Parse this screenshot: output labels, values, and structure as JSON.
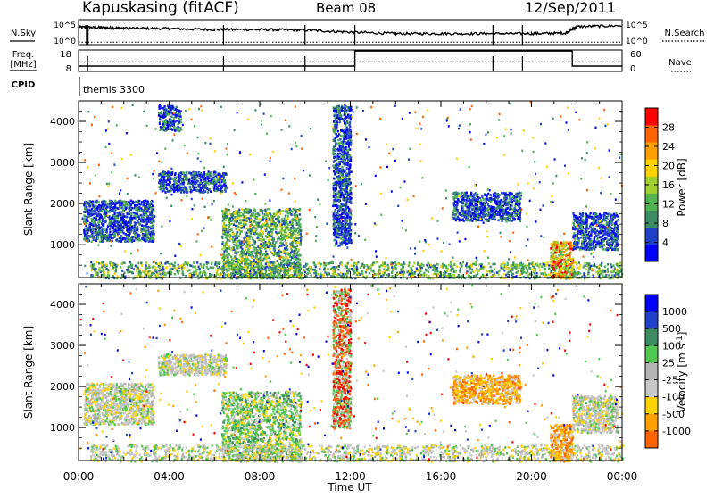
{
  "header": {
    "station": "Kapuskasing (fitACF)",
    "beam": "Beam 08",
    "date": "12/Sep/2011"
  },
  "panel_labels": {
    "nsky": "N.Sky",
    "nsearch": "N.Search",
    "freq": "Freq.",
    "freq_unit": "[MHz]",
    "nave": "Nave",
    "cpid": "CPID",
    "cpid_value": "themis 3300",
    "nsky_ticks": [
      "10^5",
      "10^0"
    ],
    "nsearch_ticks": [
      "10^5",
      "10^0"
    ],
    "freq_ticks": [
      "18",
      "8"
    ],
    "nave_ticks": [
      "60",
      "0"
    ]
  },
  "colors": {
    "power_scale": [
      "#0000ff",
      "#2040c8",
      "#3c8c64",
      "#50b450",
      "#a0d22d",
      "#ffd200",
      "#ffa000",
      "#ff6400",
      "#ff0000"
    ],
    "velocity_scale": [
      "#ff0000",
      "#ff6400",
      "#ffa000",
      "#ffd200",
      "#c8c8c8",
      "#b4b4b4",
      "#50c850",
      "#3c8c64",
      "#2040c8",
      "#0000ff"
    ]
  },
  "chart_data": [
    {
      "type": "line",
      "title": "",
      "ylabel": "N.Sky / N.Search",
      "x_range": [
        "00:00",
        "24:00"
      ],
      "series": [
        {
          "name": "N.Sky",
          "x": [
            0,
            1,
            2,
            4,
            6,
            8,
            10,
            12,
            14,
            16,
            18,
            20,
            21.5,
            22,
            24
          ],
          "values": [
            3.5,
            3.4,
            3.3,
            3.2,
            3.0,
            3.0,
            2.9,
            2.5,
            2.2,
            2.2,
            2.2,
            2.2,
            2.3,
            3.6,
            3.8
          ]
        },
        {
          "name": "N.Search",
          "x": [
            0,
            24
          ],
          "values": [
            0.5,
            0.5
          ]
        }
      ]
    },
    {
      "type": "line",
      "title": "",
      "ylabel": "Freq. [MHz] / Nave",
      "x_range": [
        "00:00",
        "24:00"
      ],
      "series": [
        {
          "name": "Freq.",
          "x": [
            0,
            12.2,
            12.2,
            21.8,
            21.8,
            24
          ],
          "values": [
            10.5,
            10.5,
            17.5,
            17.5,
            10.5,
            10.5
          ]
        },
        {
          "name": "Nave",
          "x": [
            0,
            24
          ],
          "values": [
            27,
            27
          ]
        }
      ]
    },
    {
      "type": "heatmap",
      "title": "",
      "ylabel": "Slant Range [km]",
      "xlabel": "",
      "x_ticks": [
        "00:00",
        "04:00",
        "08:00",
        "12:00",
        "16:00",
        "20:00",
        "00:00"
      ],
      "y_ticks": [
        1000,
        2000,
        3000,
        4000
      ],
      "ylim": [
        200,
        4500
      ],
      "colorbar": {
        "label": "Power [dB]",
        "ticks": [
          4,
          8,
          12,
          16,
          20,
          24,
          28
        ],
        "range": [
          0,
          32
        ]
      },
      "regions": [
        {
          "t": [
            0.2,
            3.3
          ],
          "r": [
            1100,
            2100
          ],
          "level": "low"
        },
        {
          "t": [
            3.5,
            6.5
          ],
          "r": [
            2300,
            2800
          ],
          "level": "low"
        },
        {
          "t": [
            3.5,
            4.5
          ],
          "r": [
            3800,
            4400
          ],
          "level": "low"
        },
        {
          "t": [
            6.3,
            9.8
          ],
          "r": [
            200,
            1900
          ],
          "level": "mid"
        },
        {
          "t": [
            0.5,
            24
          ],
          "r": [
            200,
            600
          ],
          "level": "mid"
        },
        {
          "t": [
            11.2,
            12.0
          ],
          "r": [
            1000,
            4400
          ],
          "level": "low"
        },
        {
          "t": [
            16.5,
            19.5
          ],
          "r": [
            1600,
            2300
          ],
          "level": "low"
        },
        {
          "t": [
            20.8,
            21.8
          ],
          "r": [
            200,
            1100
          ],
          "level": "high"
        },
        {
          "t": [
            21.8,
            23.8
          ],
          "r": [
            900,
            1800
          ],
          "level": "low"
        }
      ]
    },
    {
      "type": "heatmap",
      "title": "",
      "ylabel": "Slant Range [km]",
      "xlabel": "Time UT",
      "x_ticks": [
        "00:00",
        "04:00",
        "08:00",
        "12:00",
        "16:00",
        "20:00",
        "00:00"
      ],
      "y_ticks": [
        1000,
        2000,
        3000,
        4000
      ],
      "ylim": [
        200,
        4500
      ],
      "colorbar": {
        "label": "Velocity [m s^-1]",
        "ticks": [
          1000,
          500,
          100,
          25,
          -25,
          -100,
          -500,
          -1000
        ]
      },
      "regions": [
        {
          "t": [
            0.2,
            3.3
          ],
          "r": [
            1100,
            2100
          ],
          "level": "grey"
        },
        {
          "t": [
            3.5,
            6.5
          ],
          "r": [
            2300,
            2800
          ],
          "level": "grey"
        },
        {
          "t": [
            6.3,
            9.8
          ],
          "r": [
            200,
            1900
          ],
          "level": "green"
        },
        {
          "t": [
            0.5,
            24
          ],
          "r": [
            200,
            600
          ],
          "level": "grey"
        },
        {
          "t": [
            11.2,
            12.0
          ],
          "r": [
            1000,
            4400
          ],
          "level": "red"
        },
        {
          "t": [
            16.5,
            19.5
          ],
          "r": [
            1600,
            2300
          ],
          "level": "orange"
        },
        {
          "t": [
            20.8,
            21.8
          ],
          "r": [
            200,
            1100
          ],
          "level": "orange"
        },
        {
          "t": [
            21.8,
            23.8
          ],
          "r": [
            900,
            1800
          ],
          "level": "grey"
        }
      ]
    }
  ]
}
